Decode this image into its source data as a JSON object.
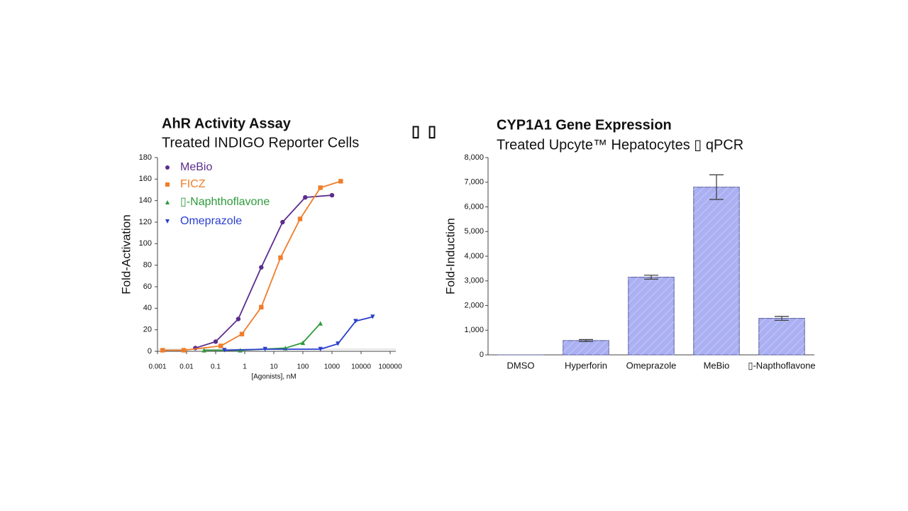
{
  "page_text": [
    "▯",
    "▯"
  ],
  "chart_data": [
    {
      "type": "line",
      "title": "AhR Activity Assay",
      "subtitle": "Treated INDIGO Reporter Cells",
      "x_label": "[Agonists], nM",
      "y_label": "Fold-Activation",
      "log_x": true,
      "xlim": [
        0.001,
        100000
      ],
      "xticks": [
        0.001,
        0.01,
        0.1,
        1,
        10,
        100,
        1000,
        10000,
        100000
      ],
      "ylim": [
        0,
        180
      ],
      "yticks": [
        0,
        20,
        40,
        60,
        80,
        100,
        120,
        140,
        160,
        180
      ],
      "legend": "upper left",
      "series": [
        {
          "name": "MeBio",
          "color": "#5b2d8e",
          "marker": "circle",
          "x": [
            0.02,
            0.1,
            0.6,
            3.7,
            20,
            120,
            1000
          ],
          "values": [
            3,
            9,
            30,
            78,
            120,
            143,
            145
          ]
        },
        {
          "name": "FICZ",
          "color": "#f07d2a",
          "marker": "square",
          "x": [
            0.0015,
            0.008,
            0.15,
            0.8,
            3.7,
            17,
            80,
            400,
            2000
          ],
          "values": [
            1,
            1,
            5,
            16,
            41,
            87,
            123,
            152,
            158
          ]
        },
        {
          "name": "▯-Naphthoflavone",
          "color": "#2e9a3a",
          "marker": "triangle-up",
          "x": [
            0.04,
            0.7,
            25,
            100,
            400
          ],
          "values": [
            1,
            1,
            3,
            8,
            26
          ]
        },
        {
          "name": "Omeprazole",
          "color": "#2a3fcf",
          "marker": "triangle-down",
          "x": [
            0.2,
            5,
            400,
            1600,
            6500,
            25000
          ],
          "values": [
            1,
            2,
            2,
            7,
            28,
            32
          ]
        }
      ]
    },
    {
      "type": "bar",
      "title": "CYP1A1 Gene Expression",
      "subtitle": "Treated Upcyte™ Hepatocytes ▯ qPCR",
      "y_label": "Fold-Induction",
      "categories": [
        "DMSO",
        "Hyperforin",
        "Omeprazole",
        "MeBio",
        "▯-Napthoflavone"
      ],
      "values": [
        1,
        580,
        3150,
        6800,
        1480
      ],
      "errors": [
        0,
        40,
        80,
        500,
        80
      ],
      "color": "#aab0f2",
      "ylim": [
        0,
        8000
      ],
      "yticks": [
        0,
        {
          "value": 1000,
          "label": "1,000"
        },
        {
          "value": 2000,
          "label": "2,000"
        },
        {
          "value": 3000,
          "label": "3,000"
        },
        {
          "value": 4000,
          "label": "4,000"
        },
        {
          "value": 5000,
          "label": "5,000"
        },
        {
          "value": 6000,
          "label": "6,000"
        },
        {
          "value": 7000,
          "label": "7,000"
        },
        {
          "value": 8000,
          "label": "8,000"
        }
      ]
    }
  ]
}
